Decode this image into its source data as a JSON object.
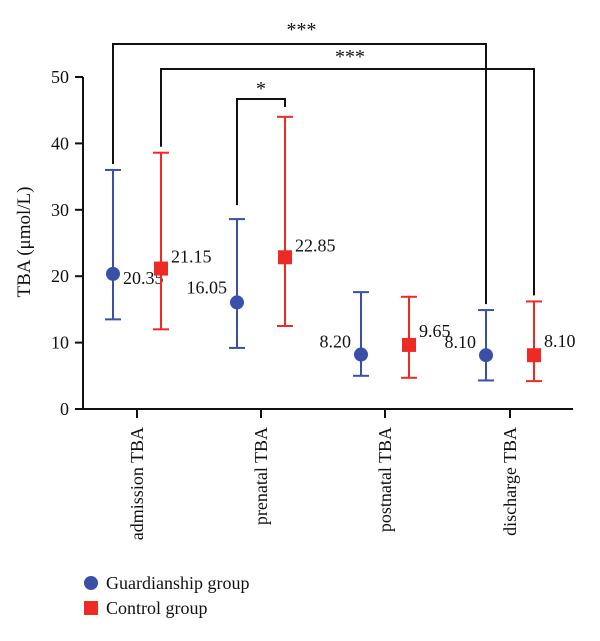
{
  "chart_data": {
    "type": "scatter",
    "title": "",
    "xlabel": "",
    "ylabel": "TBA (μmol/L)",
    "ylim": [
      0,
      50
    ],
    "yticks": [
      0,
      10,
      20,
      30,
      40,
      50
    ],
    "grid": false,
    "legend_position": "bottom-left",
    "categories": [
      "admission TBA",
      "prenatal TBA",
      "postnatal TBA",
      "discharge TBA"
    ],
    "series": [
      {
        "name": "Guardianship group",
        "color": "#3a4fa8",
        "marker": "circle",
        "values": [
          20.35,
          16.05,
          8.2,
          8.1
        ],
        "labels": [
          "20.35",
          "16.05",
          "8.20",
          "8.10"
        ],
        "error_low": [
          13.5,
          9.2,
          5.0,
          4.3
        ],
        "error_high": [
          36.0,
          28.6,
          17.6,
          14.9
        ]
      },
      {
        "name": "Control group",
        "color": "#ee2a24",
        "marker": "square",
        "values": [
          21.15,
          22.85,
          9.65,
          8.1
        ],
        "labels": [
          "21.15",
          "22.85",
          "9.65",
          "8.10"
        ],
        "error_low": [
          12.0,
          12.5,
          4.7,
          4.2
        ],
        "error_high": [
          38.6,
          44.0,
          16.9,
          16.2
        ]
      }
    ],
    "significance": [
      {
        "label": "***",
        "from": {
          "series": 0,
          "category": 0
        },
        "to": {
          "series": 0,
          "category": 3
        }
      },
      {
        "label": "***",
        "from": {
          "series": 1,
          "category": 0
        },
        "to": {
          "series": 1,
          "category": 3
        }
      },
      {
        "label": "*",
        "from": {
          "series": 0,
          "category": 1
        },
        "to": {
          "series": 1,
          "category": 1
        }
      }
    ]
  }
}
